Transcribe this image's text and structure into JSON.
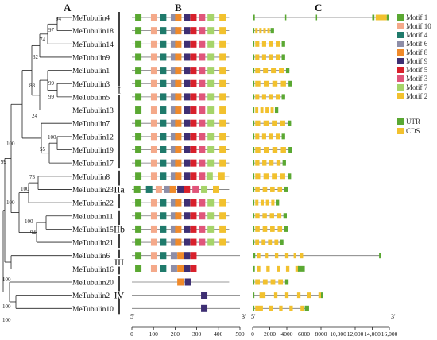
{
  "panels": {
    "a": "A",
    "b": "B",
    "c": "C"
  },
  "genes": [
    "MeTubulin4",
    "MeTubulin18",
    "MeTubulin14",
    "MeTubulin9",
    "MeTubulin1",
    "MeTubulin3",
    "MeTubulin5",
    "MeTubulin13",
    "MeTubulin7",
    "MeTubulin12",
    "MeTubulin19",
    "MeTubulin17",
    "MeTubulin8",
    "MeTubulin23",
    "MeTubulin22",
    "MeTubulin11",
    "MeTubulin15",
    "MeTubulin21",
    "MeTubulin6",
    "MeTubulin16",
    "MeTubulin20",
    "MeTubulin2",
    "MeTubulin10"
  ],
  "bootstrap": [
    {
      "label": "94",
      "between": [
        0,
        1
      ]
    },
    {
      "label": "97",
      "between": [
        0,
        2
      ]
    },
    {
      "label": "74",
      "between": [
        0,
        3
      ]
    },
    {
      "label": "32",
      "between": [
        0,
        4
      ]
    },
    {
      "label": "99",
      "between": [
        4,
        5
      ]
    },
    {
      "label": "99",
      "between": [
        5,
        6
      ]
    },
    {
      "label": "88",
      "between": [
        4,
        7
      ]
    },
    {
      "label": "100",
      "between": [
        9,
        10
      ]
    },
    {
      "label": "55",
      "between": [
        9,
        11
      ]
    },
    {
      "label": "24",
      "between": [
        8,
        11
      ]
    },
    {
      "label": "100",
      "between": [
        0,
        11
      ]
    },
    {
      "label": "73",
      "between": [
        12,
        13
      ]
    },
    {
      "label": "100",
      "between": [
        12,
        14
      ]
    },
    {
      "label": "100",
      "between": [
        15,
        16
      ]
    },
    {
      "label": "94",
      "between": [
        16,
        17
      ]
    },
    {
      "label": "100",
      "between": [
        12,
        17
      ]
    },
    {
      "label": "99",
      "between": [
        0,
        17
      ]
    },
    {
      "label": "100",
      "between": [
        18,
        19
      ]
    },
    {
      "label": "100",
      "between": [
        21,
        22
      ]
    },
    {
      "label": "100",
      "between": [
        20,
        22
      ]
    }
  ],
  "groups": [
    {
      "label": "I",
      "from": 0,
      "to": 11
    },
    {
      "label": "IIa",
      "from": 12,
      "to": 14
    },
    {
      "label": "IIb",
      "from": 15,
      "to": 17
    },
    {
      "label": "III",
      "from": 18,
      "to": 19
    },
    {
      "label": "IV",
      "from": 20,
      "to": 22
    }
  ],
  "motif_legend": [
    {
      "name": "Motif 1",
      "color": "#5aa832"
    },
    {
      "name": "Motif 10",
      "color": "#f4a98a"
    },
    {
      "name": "Motif 4",
      "color": "#1f7a6b"
    },
    {
      "name": "Motif 6",
      "color": "#8e8ea8"
    },
    {
      "name": "Motif 8",
      "color": "#f08a2a"
    },
    {
      "name": "Motif 9",
      "color": "#3e2f73"
    },
    {
      "name": "Motif 5",
      "color": "#d8202b"
    },
    {
      "name": "Motif 3",
      "color": "#e0557a"
    },
    {
      "name": "Motif 7",
      "color": "#a6d46a"
    },
    {
      "name": "Motif 2",
      "color": "#f2c12e"
    }
  ],
  "structure_legend": [
    {
      "name": "UTR",
      "color": "#5aa832"
    },
    {
      "name": "CDS",
      "color": "#f2c12e"
    }
  ],
  "motif_axis": {
    "start": "5'",
    "end": "3'",
    "ticks": [
      "0",
      "100",
      "200",
      "300",
      "400",
      "500"
    ],
    "max": 500
  },
  "structure_axis": {
    "start": "5'",
    "end": "3'",
    "ticks": [
      "0",
      "2000",
      "4000",
      "6000",
      "8000",
      "10,000",
      "12,000",
      "14,000",
      "16,000"
    ],
    "max": 16000
  }
}
